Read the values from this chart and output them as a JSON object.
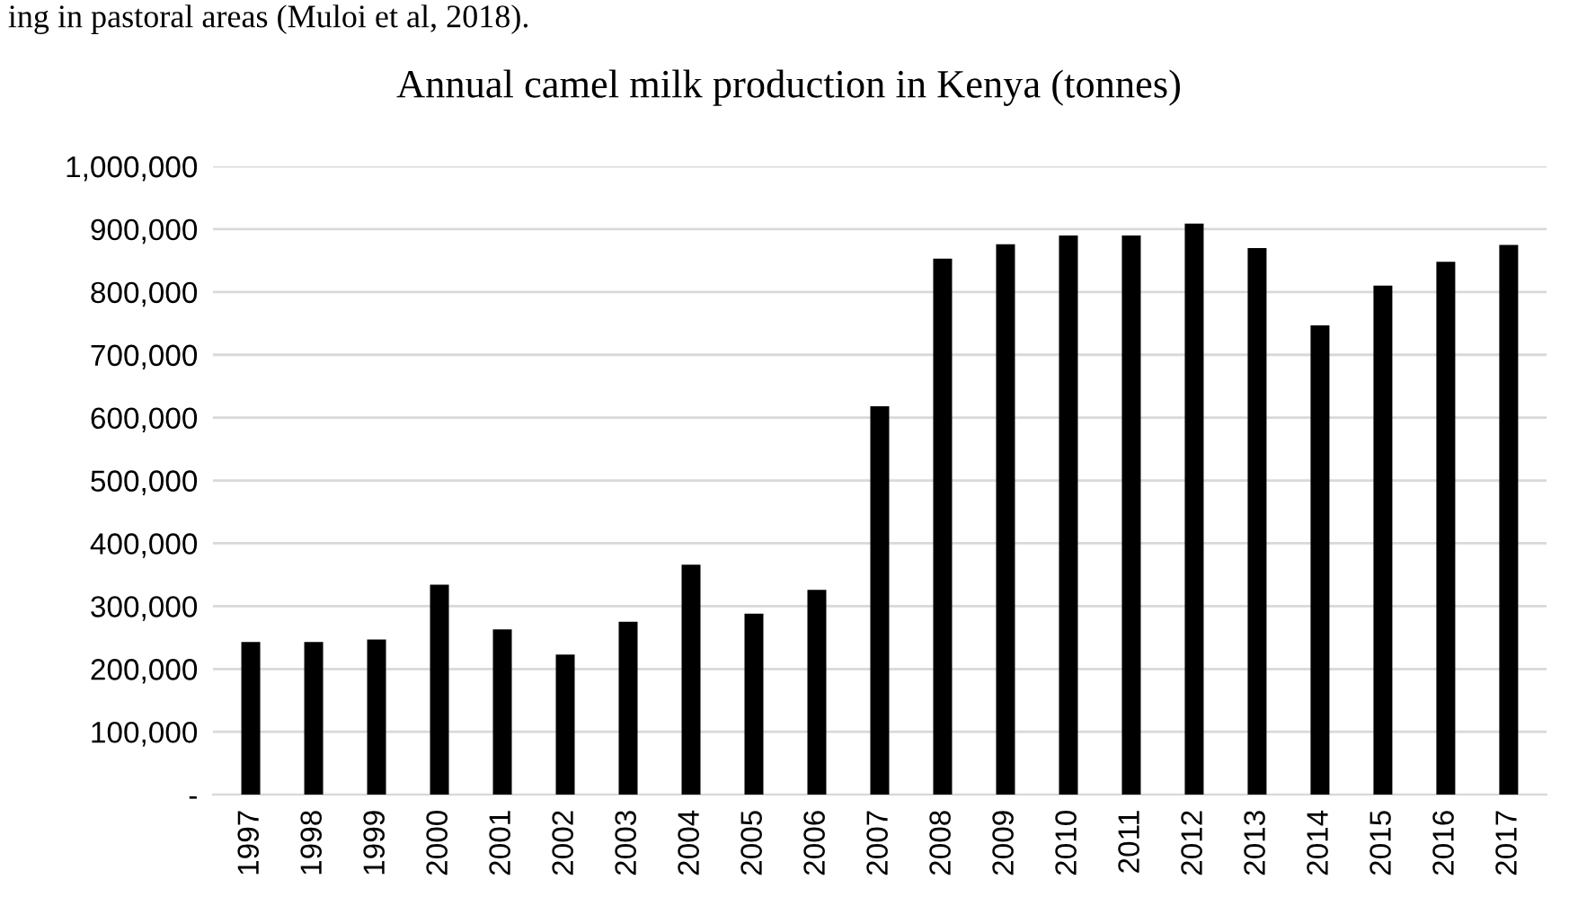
{
  "chart_data": {
    "type": "bar",
    "title": "Annual camel milk production in Kenya (tonnes)",
    "annotations": [
      "ing in pastoral areas (Muloi et al, 2018)."
    ],
    "categories": [
      "1997",
      "1998",
      "1999",
      "2000",
      "2001",
      "2002",
      "2003",
      "2004",
      "2005",
      "2006",
      "2007",
      "2008",
      "2009",
      "2010",
      "2011",
      "2012",
      "2013",
      "2014",
      "2015",
      "2016",
      "2017"
    ],
    "values": [
      243000,
      243000,
      247000,
      334000,
      263000,
      223000,
      275000,
      366000,
      288000,
      326000,
      618000,
      853000,
      876000,
      890000,
      890000,
      909000,
      870000,
      747000,
      810000,
      848000,
      875000
    ],
    "color": "#000000",
    "ylim": [
      0,
      1000000
    ],
    "yticks": [
      {
        "value": 0,
        "label": "-"
      },
      {
        "value": 100000,
        "label": "100,000"
      },
      {
        "value": 200000,
        "label": "200,000"
      },
      {
        "value": 300000,
        "label": "300,000"
      },
      {
        "value": 400000,
        "label": "400,000"
      },
      {
        "value": 500000,
        "label": "500,000"
      },
      {
        "value": 600000,
        "label": "600,000"
      },
      {
        "value": 700000,
        "label": "700,000"
      },
      {
        "value": 800000,
        "label": "800,000"
      },
      {
        "value": 900000,
        "label": "900,000"
      },
      {
        "value": 1000000,
        "label": "1,000,000"
      }
    ],
    "grid": "y"
  }
}
